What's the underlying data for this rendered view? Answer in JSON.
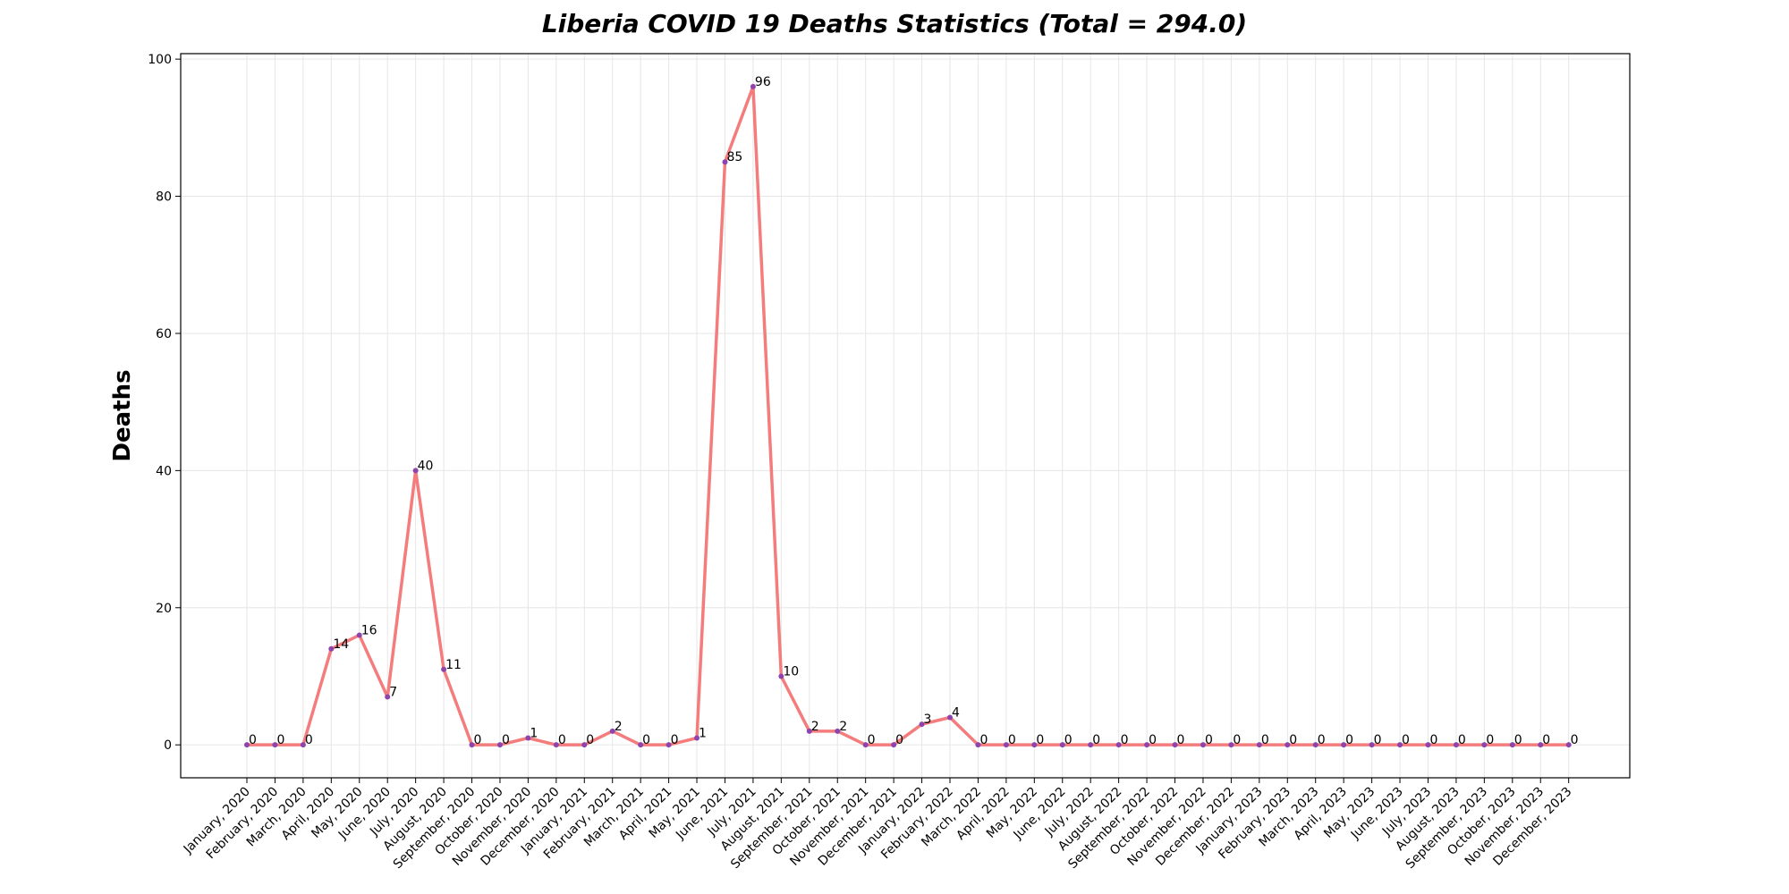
{
  "chart_data": {
    "type": "line",
    "title": "Liberia COVID 19 Deaths Statistics (Total = 294.0)",
    "xlabel": "",
    "ylabel": "Deaths",
    "ylim": [
      -4.8,
      100.8
    ],
    "yticks": [
      0,
      20,
      40,
      60,
      80,
      100
    ],
    "grid": true,
    "line_color": "#f47c7c",
    "marker_color": "#8e44ad",
    "categories": [
      "January, 2020",
      "February, 2020",
      "March, 2020",
      "April, 2020",
      "May, 2020",
      "June, 2020",
      "July, 2020",
      "August, 2020",
      "September, 2020",
      "October, 2020",
      "November, 2020",
      "December, 2020",
      "January, 2021",
      "February, 2021",
      "March, 2021",
      "April, 2021",
      "May, 2021",
      "June, 2021",
      "July, 2021",
      "August, 2021",
      "September, 2021",
      "October, 2021",
      "November, 2021",
      "December, 2021",
      "January, 2022",
      "February, 2022",
      "March, 2022",
      "April, 2022",
      "May, 2022",
      "June, 2022",
      "July, 2022",
      "August, 2022",
      "September, 2022",
      "October, 2022",
      "November, 2022",
      "December, 2022",
      "January, 2023",
      "February, 2023",
      "March, 2023",
      "April, 2023",
      "May, 2023",
      "June, 2023",
      "July, 2023",
      "August, 2023",
      "September, 2023",
      "October, 2023",
      "November, 2023",
      "December, 2023"
    ],
    "values": [
      0,
      0,
      0,
      14,
      16,
      7,
      40,
      11,
      0,
      0,
      1,
      0,
      0,
      2,
      0,
      0,
      1,
      85,
      96,
      10,
      2,
      2,
      0,
      0,
      3,
      4,
      0,
      0,
      0,
      0,
      0,
      0,
      0,
      0,
      0,
      0,
      0,
      0,
      0,
      0,
      0,
      0,
      0,
      0,
      0,
      0,
      0,
      0
    ]
  }
}
